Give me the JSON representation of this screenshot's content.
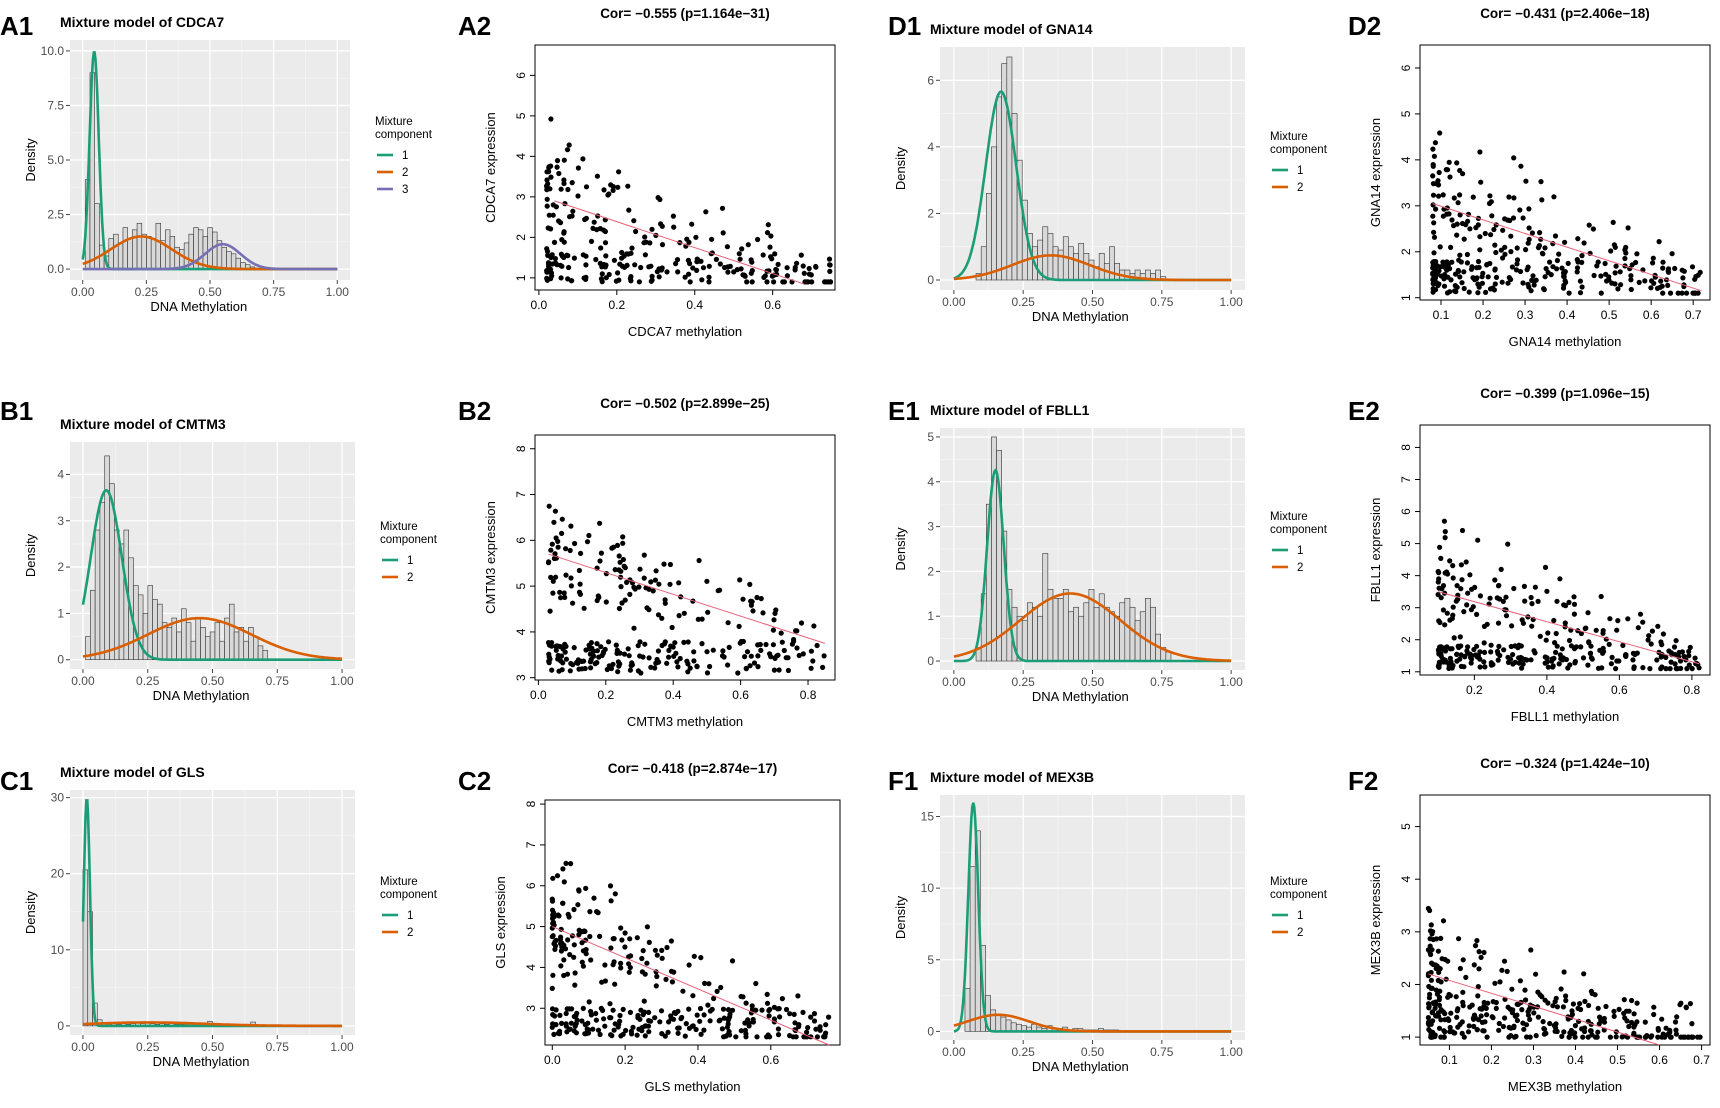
{
  "figure": {
    "gene_order": [
      "CDCA7",
      "CMTM3",
      "GLS",
      "GNA14",
      "FBLL1",
      "MEX3B"
    ]
  },
  "chart_data": [
    {
      "type": "bar",
      "panel": "A1",
      "title": "Mixture model of CDCA7",
      "xlabel": "DNA Methylation",
      "ylabel": "Density",
      "xlim": [
        -0.05,
        1.05
      ],
      "ylim": [
        -0.5,
        10.5
      ],
      "xticks": [
        0,
        0.25,
        0.5,
        0.75,
        1
      ],
      "xticklabels": [
        "0.00",
        "0.25",
        "0.50",
        "0.75",
        "1.00"
      ],
      "yticks": [
        0,
        2.5,
        5,
        7.5,
        10
      ],
      "yticklabels": [
        "0.0",
        "2.5",
        "5.0",
        "7.5",
        "10.0"
      ],
      "legend_title": "Mixture\ncomponent",
      "legend_labels": [
        "1",
        "2",
        "3"
      ],
      "legend_colors": [
        "#1b9e77",
        "#d95f02",
        "#7570b3"
      ],
      "bin_start": 0.01,
      "bin_width": 0.0185,
      "bin_values": [
        4.1,
        9.0,
        3.0,
        1.1,
        0.6,
        1.4,
        1.6,
        1.2,
        1.9,
        1.4,
        1.8,
        2.1,
        1.6,
        1.5,
        1.4,
        2.1,
        1.3,
        1.8,
        1.5,
        1.0,
        0.9,
        1.2,
        1.6,
        1.9,
        1.8,
        1.5,
        1.9,
        1.7,
        1.3,
        1.0,
        0.8,
        0.7,
        0.5,
        0.3,
        0.2,
        0.1
      ],
      "components": [
        {
          "mu": 0.045,
          "sd": 0.018,
          "w": 0.45
        },
        {
          "mu": 0.23,
          "sd": 0.12,
          "w": 0.45
        },
        {
          "mu": 0.55,
          "sd": 0.07,
          "w": 0.2
        }
      ]
    },
    {
      "type": "scatter",
      "panel": "A2",
      "title": "Cor= −0.555 (p=1.164e−31)",
      "xlabel": "CDCA7 methylation",
      "ylabel": "CDCA7 expression",
      "xlim": [
        -0.01,
        0.76
      ],
      "ylim": [
        0.7,
        6.75
      ],
      "xticks": [
        0,
        0.2,
        0.4,
        0.6
      ],
      "xticklabels": [
        "0.0",
        "0.2",
        "0.4",
        "0.6"
      ],
      "yticks": [
        1,
        2,
        3,
        4,
        5,
        6
      ],
      "yticklabels": [
        "1",
        "2",
        "3",
        "4",
        "5",
        "6"
      ],
      "n_points": 280,
      "x_range": [
        0.02,
        0.75
      ],
      "y_range": [
        0.9,
        6.6
      ],
      "fit": {
        "x0": 0.04,
        "y0": 2.9,
        "x1": 0.68,
        "y1": 0.85
      }
    },
    {
      "type": "bar",
      "panel": "B1",
      "title": "Mixture model of CMTM3",
      "xlabel": "DNA Methylation",
      "ylabel": "Density",
      "xlim": [
        -0.05,
        1.05
      ],
      "ylim": [
        -0.2,
        4.7
      ],
      "xticks": [
        0,
        0.25,
        0.5,
        0.75,
        1
      ],
      "xticklabels": [
        "0.00",
        "0.25",
        "0.50",
        "0.75",
        "1.00"
      ],
      "yticks": [
        0,
        1,
        2,
        3,
        4
      ],
      "yticklabels": [
        "0",
        "1",
        "2",
        "3",
        "4"
      ],
      "legend_title": "Mixture\ncomponent",
      "legend_labels": [
        "1",
        "2"
      ],
      "legend_colors": [
        "#1b9e77",
        "#d95f02"
      ],
      "bin_start": 0.01,
      "bin_width": 0.0185,
      "bin_values": [
        0.5,
        1.5,
        2.8,
        3.4,
        4.4,
        3.8,
        2.8,
        2.5,
        2.8,
        2.2,
        1.6,
        1.4,
        1.0,
        1.6,
        1.3,
        1.2,
        0.8,
        0.7,
        0.9,
        0.6,
        1.1,
        0.8,
        0.4,
        0.9,
        0.7,
        0.5,
        0.6,
        0.8,
        0.4,
        0.9,
        1.2,
        0.6,
        0.7,
        0.4,
        0.7,
        0.5,
        0.3,
        0.2
      ],
      "components": [
        {
          "mu": 0.09,
          "sd": 0.06,
          "w": 0.55
        },
        {
          "mu": 0.45,
          "sd": 0.2,
          "w": 0.45
        }
      ]
    },
    {
      "type": "scatter",
      "panel": "B2",
      "title": "Cor= −0.502 (p=2.899e−25)",
      "xlabel": "CMTM3 methylation",
      "ylabel": "CMTM3 expression",
      "xlim": [
        -0.01,
        0.88
      ],
      "ylim": [
        2.95,
        8.3
      ],
      "xticks": [
        0,
        0.2,
        0.4,
        0.6,
        0.8
      ],
      "xticklabels": [
        "0.0",
        "0.2",
        "0.4",
        "0.6",
        "0.8"
      ],
      "yticks": [
        3,
        4,
        5,
        6,
        7,
        8
      ],
      "yticklabels": [
        "3",
        "4",
        "5",
        "6",
        "7",
        "8"
      ],
      "n_points": 300,
      "x_range": [
        0.03,
        0.85
      ],
      "y_range": [
        3.1,
        8.2
      ],
      "fit": {
        "x0": 0.03,
        "y0": 5.7,
        "x1": 0.85,
        "y1": 3.75
      }
    },
    {
      "type": "bar",
      "panel": "C1",
      "title": "Mixture model of GLS",
      "xlabel": "DNA Methylation",
      "ylabel": "Density",
      "xlim": [
        -0.05,
        1.05
      ],
      "ylim": [
        -1.2,
        31
      ],
      "xticks": [
        0,
        0.25,
        0.5,
        0.75,
        1
      ],
      "xticklabels": [
        "0.00",
        "0.25",
        "0.50",
        "0.75",
        "1.00"
      ],
      "yticks": [
        0,
        10,
        20,
        30
      ],
      "yticklabels": [
        "0",
        "10",
        "20",
        "30"
      ],
      "legend_title": "Mixture\ncomponent",
      "legend_labels": [
        "1",
        "2"
      ],
      "legend_colors": [
        "#1b9e77",
        "#d95f02"
      ],
      "bin_start": 0.0,
      "bin_width": 0.0185,
      "bin_values": [
        20.5,
        15.0,
        3.0,
        0.8,
        0.3,
        0.2,
        0.3,
        0.2,
        0.3,
        0.2,
        0.3,
        0.4,
        0.3,
        0.5,
        0.3,
        0.2,
        0.3,
        0.2,
        0.1,
        0.2,
        0.2,
        0.2,
        0.2,
        0.1,
        0.1,
        0.1,
        0.6,
        0.1,
        0.1,
        0.1,
        0.1,
        0.1,
        0.1,
        0.1,
        0.1,
        0.5,
        0.1,
        0.1
      ],
      "components": [
        {
          "mu": 0.015,
          "sd": 0.012,
          "w": 0.9
        },
        {
          "mu": 0.25,
          "sd": 0.22,
          "w": 0.25
        }
      ]
    },
    {
      "type": "scatter",
      "panel": "C2",
      "title": "Cor= −0.418 (p=2.874e−17)",
      "xlabel": "GLS methylation",
      "ylabel": "GLS expression",
      "xlim": [
        -0.02,
        0.79
      ],
      "ylim": [
        2.1,
        8.1
      ],
      "xticks": [
        0,
        0.2,
        0.4,
        0.6
      ],
      "xticklabels": [
        "0.0",
        "0.2",
        "0.4",
        "0.6"
      ],
      "yticks": [
        3,
        4,
        5,
        6,
        7,
        8
      ],
      "yticklabels": [
        "3",
        "4",
        "5",
        "6",
        "7",
        "8"
      ],
      "n_points": 350,
      "x_range": [
        0.0,
        0.76
      ],
      "y_range": [
        2.3,
        7.9
      ],
      "fit": {
        "x0": 0.0,
        "y0": 5.0,
        "x1": 0.76,
        "y1": 2.1
      }
    },
    {
      "type": "bar",
      "panel": "D1",
      "title": "Mixture model of GNA14",
      "xlabel": "DNA Methylation",
      "ylabel": "Density",
      "xlim": [
        -0.05,
        1.05
      ],
      "ylim": [
        -0.3,
        7.0
      ],
      "xticks": [
        0,
        0.25,
        0.5,
        0.75,
        1
      ],
      "xticklabels": [
        "0.00",
        "0.25",
        "0.50",
        "0.75",
        "1.00"
      ],
      "yticks": [
        0,
        2,
        4,
        6
      ],
      "yticklabels": [
        "0",
        "2",
        "4",
        "6"
      ],
      "legend_title": "Mixture\ncomponent",
      "legend_labels": [
        "1",
        "2"
      ],
      "legend_colors": [
        "#1b9e77",
        "#d95f02"
      ],
      "bin_start": 0.08,
      "bin_width": 0.0185,
      "bin_values": [
        0.2,
        1.0,
        2.6,
        4.0,
        5.5,
        6.5,
        6.7,
        5.0,
        3.6,
        2.4,
        1.4,
        1.0,
        1.2,
        1.6,
        1.4,
        1.0,
        0.9,
        1.3,
        1.0,
        0.8,
        1.1,
        0.8,
        0.6,
        0.4,
        0.8,
        0.5,
        1.0,
        0.5,
        0.3,
        0.3,
        0.2,
        0.3,
        0.2,
        0.3,
        0.2,
        0.3,
        0.1
      ],
      "components": [
        {
          "mu": 0.17,
          "sd": 0.055,
          "w": 0.78
        },
        {
          "mu": 0.35,
          "sd": 0.14,
          "w": 0.26
        }
      ]
    },
    {
      "type": "scatter",
      "panel": "D2",
      "title": "Cor= −0.431 (p=2.406e−18)",
      "xlabel": "GNA14 methylation",
      "ylabel": "GNA14 expression",
      "xlim": [
        0.05,
        0.74
      ],
      "ylim": [
        0.95,
        6.5
      ],
      "xticks": [
        0.1,
        0.2,
        0.3,
        0.4,
        0.5,
        0.6,
        0.7
      ],
      "xticklabels": [
        "0.1",
        "0.2",
        "0.3",
        "0.4",
        "0.5",
        "0.6",
        "0.7"
      ],
      "yticks": [
        1,
        2,
        3,
        4,
        5,
        6
      ],
      "yticklabels": [
        "1",
        "2",
        "3",
        "4",
        "5",
        "6"
      ],
      "n_points": 330,
      "x_range": [
        0.08,
        0.72
      ],
      "y_range": [
        1.1,
        6.35
      ],
      "fit": {
        "x0": 0.08,
        "y0": 3.05,
        "x1": 0.72,
        "y1": 1.15
      }
    },
    {
      "type": "bar",
      "panel": "E1",
      "title": "Mixture model of FBLL1",
      "xlabel": "DNA Methylation",
      "ylabel": "Density",
      "xlim": [
        -0.05,
        1.05
      ],
      "ylim": [
        -0.2,
        5.2
      ],
      "xticks": [
        0,
        0.25,
        0.5,
        0.75,
        1
      ],
      "xticklabels": [
        "0.00",
        "0.25",
        "0.50",
        "0.75",
        "1.00"
      ],
      "yticks": [
        0,
        1,
        2,
        3,
        4,
        5
      ],
      "yticklabels": [
        "0",
        "1",
        "2",
        "3",
        "4",
        "5"
      ],
      "legend_title": "Mixture\ncomponent",
      "legend_labels": [
        "1",
        "2"
      ],
      "legend_colors": [
        "#1b9e77",
        "#d95f02"
      ],
      "bin_start": 0.08,
      "bin_width": 0.0185,
      "bin_values": [
        0.3,
        1.5,
        3.5,
        5.0,
        4.7,
        2.9,
        1.6,
        1.2,
        1.0,
        0.9,
        1.3,
        1.2,
        1.0,
        2.4,
        1.6,
        1.4,
        1.4,
        1.6,
        1.1,
        1.2,
        1.0,
        1.3,
        1.6,
        1.2,
        1.5,
        1.2,
        1.1,
        1.0,
        1.3,
        1.4,
        1.2,
        0.9,
        1.1,
        1.4,
        1.2,
        0.6,
        0.3,
        0.2
      ],
      "components": [
        {
          "mu": 0.15,
          "sd": 0.03,
          "w": 0.32
        },
        {
          "mu": 0.42,
          "sd": 0.18,
          "w": 0.68
        }
      ]
    },
    {
      "type": "scatter",
      "panel": "E2",
      "title": "Cor= −0.399 (p=1.096e−15)",
      "xlabel": "FBLL1 methylation",
      "ylabel": "FBLL1 expression",
      "xlim": [
        0.05,
        0.85
      ],
      "ylim": [
        0.9,
        8.7
      ],
      "xticks": [
        0.2,
        0.4,
        0.6,
        0.8
      ],
      "xticklabels": [
        "0.2",
        "0.4",
        "0.6",
        "0.8"
      ],
      "yticks": [
        1,
        2,
        3,
        4,
        5,
        6,
        7,
        8
      ],
      "yticklabels": [
        "1",
        "2",
        "3",
        "4",
        "5",
        "6",
        "7",
        "8"
      ],
      "n_points": 330,
      "x_range": [
        0.1,
        0.82
      ],
      "y_range": [
        1.1,
        8.4
      ],
      "fit": {
        "x0": 0.1,
        "y0": 3.5,
        "x1": 0.82,
        "y1": 1.25
      }
    },
    {
      "type": "bar",
      "panel": "F1",
      "title": "Mixture model of MEX3B",
      "xlabel": "DNA Methylation",
      "ylabel": "Density",
      "xlim": [
        -0.05,
        1.05
      ],
      "ylim": [
        -0.6,
        16.5
      ],
      "xticks": [
        0,
        0.25,
        0.5,
        0.75,
        1
      ],
      "xticklabels": [
        "0.00",
        "0.25",
        "0.50",
        "0.75",
        "1.00"
      ],
      "yticks": [
        0,
        5,
        10,
        15
      ],
      "yticklabels": [
        "0",
        "5",
        "10",
        "15"
      ],
      "legend_title": "Mixture\ncomponent",
      "legend_labels": [
        "1",
        "2"
      ],
      "legend_colors": [
        "#1b9e77",
        "#d95f02"
      ],
      "bin_start": 0.04,
      "bin_width": 0.0185,
      "bin_values": [
        3.0,
        11.5,
        14.0,
        6.0,
        2.5,
        1.5,
        1.1,
        1.0,
        0.8,
        0.6,
        0.5,
        0.4,
        0.3,
        0.5,
        0.3,
        0.2,
        0.4,
        0.2,
        0.2,
        0.3,
        0.1,
        0.2,
        0.2,
        0.1,
        0.1,
        0.1,
        0.2,
        0.1,
        0.1,
        0.1
      ],
      "components": [
        {
          "mu": 0.07,
          "sd": 0.018,
          "w": 0.72
        },
        {
          "mu": 0.16,
          "sd": 0.11,
          "w": 0.32
        }
      ]
    },
    {
      "type": "scatter",
      "panel": "F2",
      "title": "Cor= −0.324 (p=1.424e−10)",
      "xlabel": "MEX3B methylation",
      "ylabel": "MEX3B expression",
      "xlim": [
        0.03,
        0.72
      ],
      "ylim": [
        0.85,
        5.6
      ],
      "xticks": [
        0.1,
        0.2,
        0.3,
        0.4,
        0.5,
        0.6,
        0.7
      ],
      "xticklabels": [
        "0.1",
        "0.2",
        "0.3",
        "0.4",
        "0.5",
        "0.6",
        "0.7"
      ],
      "yticks": [
        1,
        2,
        3,
        4,
        5
      ],
      "yticklabels": [
        "1",
        "2",
        "3",
        "4",
        "5"
      ],
      "n_points": 350,
      "x_range": [
        0.05,
        0.7
      ],
      "y_range": [
        1.0,
        5.45
      ],
      "fit": {
        "x0": 0.05,
        "y0": 2.2,
        "x1": 0.6,
        "y1": 0.85
      }
    }
  ]
}
